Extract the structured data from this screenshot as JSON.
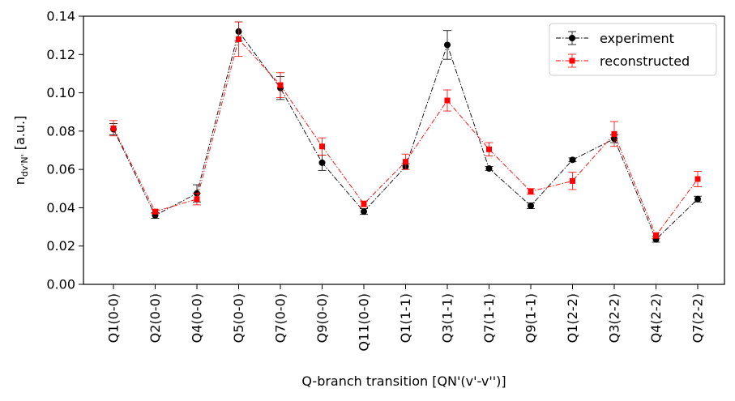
{
  "chart_data": {
    "type": "line",
    "title": "",
    "xlabel": "Q-branch transition [QN'(v'-v'')]",
    "ylabel_main": "n",
    "ylabel_sub": "dv'N'",
    "ylabel_rest": " [a.u.]",
    "ylim": [
      0.0,
      0.14
    ],
    "yticks": [
      0.0,
      0.02,
      0.04,
      0.06,
      0.08,
      0.1,
      0.12,
      0.14
    ],
    "ytick_labels": [
      "0.00",
      "0.02",
      "0.04",
      "0.06",
      "0.08",
      "0.10",
      "0.12",
      "0.14"
    ],
    "categories": [
      "Q1(0-0)",
      "Q2(0-0)",
      "Q4(0-0)",
      "Q5(0-0)",
      "Q7(0-0)",
      "Q9(0-0)",
      "Q11(0-0)",
      "Q1(1-1)",
      "Q3(1-1)",
      "Q7(1-1)",
      "Q9(1-1)",
      "Q1(2-2)",
      "Q3(2-2)",
      "Q4(2-2)",
      "Q7(2-2)"
    ],
    "legend_position": "top-right",
    "grid": false,
    "series": [
      {
        "name": "experiment",
        "color": "#000000",
        "marker": "circle",
        "values": [
          0.081,
          0.036,
          0.0475,
          0.132,
          0.1025,
          0.0635,
          0.038,
          0.0615,
          0.125,
          0.0605,
          0.041,
          0.065,
          0.076,
          0.0235,
          0.0445
        ],
        "errors": [
          0.003,
          0.0015,
          0.0045,
          0.005,
          0.006,
          0.004,
          0.0015,
          0.0015,
          0.0075,
          0.001,
          0.0015,
          0.001,
          0.002,
          0.0015,
          0.0015
        ]
      },
      {
        "name": "reconstructed",
        "color": "#ff0000",
        "marker": "square",
        "values": [
          0.0815,
          0.038,
          0.0445,
          0.128,
          0.104,
          0.072,
          0.042,
          0.064,
          0.096,
          0.0705,
          0.0485,
          0.054,
          0.0785,
          0.0255,
          0.055
        ],
        "errors": [
          0.004,
          0.001,
          0.003,
          0.009,
          0.0065,
          0.0045,
          0.0015,
          0.004,
          0.0055,
          0.0035,
          0.0015,
          0.0045,
          0.0065,
          0.0015,
          0.004
        ]
      }
    ]
  }
}
